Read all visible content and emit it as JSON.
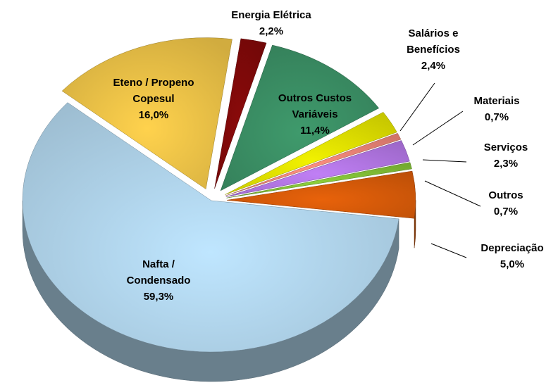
{
  "chart_data": {
    "type": "pie",
    "categories": [
      "Energia Elétrica",
      "Outros Custos Variáveis",
      "Salários e Benefícios",
      "Materiais",
      "Serviços",
      "Outros",
      "Depreciação",
      "Nafta / Condensado",
      "Eteno / Propeno Copesul"
    ],
    "values": [
      2.2,
      11.4,
      2.4,
      0.7,
      2.3,
      0.7,
      5.0,
      59.3,
      16.0
    ],
    "value_labels": [
      "2,2%",
      "11,4%",
      "2,4%",
      "0,7%",
      "2,3%",
      "0,7%",
      "5,0%",
      "59,3%",
      "16,0%"
    ],
    "colors": [
      "#8b0a0a",
      "#3f9a6c",
      "#f2f200",
      "#ff8f80",
      "#c07ff5",
      "#8ccf3a",
      "#e8620a",
      "#bfe6ff",
      "#ffd24d"
    ]
  }
}
